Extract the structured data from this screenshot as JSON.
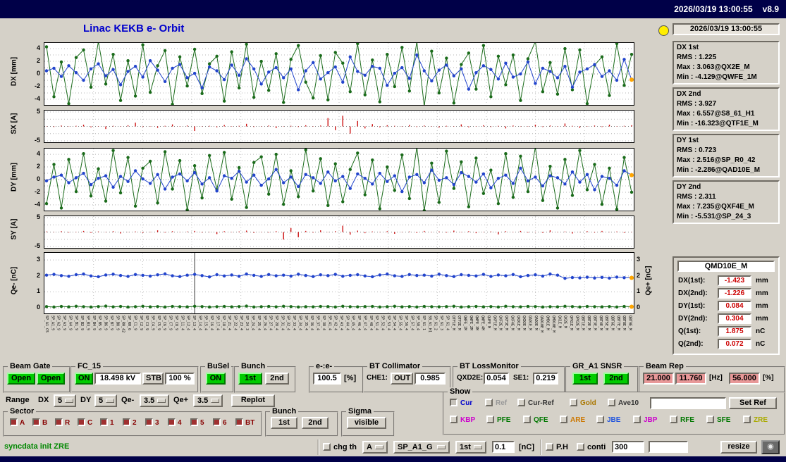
{
  "window": {
    "topbar_datetime": "2026/03/19 13:00:55",
    "topbar_version": "v8.9",
    "title": "Linac KEKB e- Orbit"
  },
  "icons": {
    "camera": "◉"
  },
  "colors": {
    "topbar_navy": "#000048",
    "accent_title": "#0000cc",
    "button_on_green": "#00cc00",
    "value_pink_bg": "#e89898",
    "value_red_text": "#cc0000",
    "status_green_text": "#008800",
    "sector_toggle": "#a03030",
    "gold": "#ffa500",
    "led_yellow": "#ffee00",
    "series_blue": "#2244cc",
    "series_green": "#1a6b1a",
    "series_red": "#cc1111"
  },
  "status_panel": {
    "timestamp": "2026/03/19 13:00:55",
    "stats": [
      {
        "title": "DX 1st",
        "rms": "RMS :  1.225",
        "max": "Max :  3.063@QX2E_M",
        "min": "Min : -4.129@QWFE_1M"
      },
      {
        "title": "DX 2nd",
        "rms": "RMS :  3.927",
        "max": "Max :  6.557@S8_61_H1",
        "min": "Min : -16.323@QTF1E_M"
      },
      {
        "title": "DY 1st",
        "rms": "RMS :  0.723",
        "max": "Max :  2.516@SP_R0_42",
        "min": "Min : -2.286@QAD10E_M"
      },
      {
        "title": "DY 2nd",
        "rms": "RMS :  2.311",
        "max": "Max :  7.235@QXF4E_M",
        "min": "Min : -5.531@SP_24_3"
      }
    ],
    "monitor": {
      "title": "QMD10E_M",
      "rows": [
        {
          "label": "DX(1st):",
          "value": "-1.423",
          "unit": "mm"
        },
        {
          "label": "DX(2nd):",
          "value": "-1.226",
          "unit": "mm"
        },
        {
          "label": "DY(1st):",
          "value": "0.084",
          "unit": "mm"
        },
        {
          "label": "DY(2nd):",
          "value": "0.304",
          "unit": "mm"
        },
        {
          "label": "Q(1st):",
          "value": "1.875",
          "unit": "nC"
        },
        {
          "label": "Q(2nd):",
          "value": "0.072",
          "unit": "nC"
        }
      ]
    }
  },
  "chart_data": [
    {
      "type": "line",
      "ylabel": "DX [mm]",
      "ylim": [
        -4.9,
        4.9
      ],
      "yticks": [
        4,
        2,
        0,
        -2,
        -4
      ],
      "grid_step": 1,
      "series": [
        {
          "name": "2nd bunch",
          "color": "#1a6b1a",
          "values": [
            4.3,
            -3.6,
            1.9,
            -4.7,
            2.6,
            3.8,
            -2.1,
            5.4,
            -1.6,
            3.1,
            -4.2,
            2.1,
            -3.5,
            4.6,
            -2.9,
            1.3,
            3.7,
            -4.8,
            2.7,
            -1.9,
            3.9,
            -3.1,
            1.6,
            2.8,
            -4.3,
            3.5,
            -2.2,
            4.7,
            -3.7,
            2.0,
            -2.6,
            3.2,
            -4.5,
            2.3,
            4.5,
            -1.3,
            -3.8,
            2.9,
            -4.1,
            3.4,
            1.7,
            -2.8,
            4.8,
            -3.3,
            2.2,
            -4.4,
            3.1,
            -2.0,
            4.2,
            -2.7,
            7.4,
            -5.1,
            3.6,
            -3.0,
            2.5,
            -4.6,
            1.5,
            3.3,
            -2.4,
            4.5,
            -3.6,
            2.8,
            -1.7,
            3.0,
            -4.2,
            2.4,
            6.1,
            -2.8,
            1.8,
            -3.2,
            4.0,
            -2.5,
            3.8,
            -4.7,
            1.4,
            2.7,
            -3.4,
            4.8,
            -1.8,
            3.1
          ]
        },
        {
          "name": "1st bunch",
          "color": "#2244cc",
          "gold_last": true,
          "values": [
            0.5,
            0.9,
            -0.4,
            1.3,
            0.2,
            -1.0,
            0.8,
            1.6,
            -0.3,
            0.7,
            -1.7,
            0.4,
            1.2,
            -0.5,
            2.1,
            0.6,
            -1.2,
            0.9,
            1.5,
            -0.6,
            0.1,
            -2.2,
            1.1,
            0.5,
            -0.9,
            1.4,
            -0.2,
            2.4,
            0.8,
            -1.6,
            0.3,
            1.0,
            -0.6,
            0.8,
            -2.5,
            0.5,
            1.8,
            -0.8,
            0.2,
            1.1,
            -1.3,
            2.7,
            0.4,
            -0.2,
            1.2,
            0.9,
            -1.8,
            0.1,
            1.0,
            -0.7,
            3.0,
            0.5,
            -1.1,
            0.6,
            1.4,
            -0.3,
            0.8,
            -2.4,
            0.2,
            1.3,
            0.7,
            -0.8,
            1.7,
            -0.5,
            0.0,
            1.9,
            -1.5,
            0.9,
            0.4,
            -0.6,
            1.2,
            -2.1,
            0.3,
            0.8,
            1.5,
            -0.4,
            0.5,
            -1.0,
            2.3,
            -0.9
          ]
        }
      ]
    },
    {
      "type": "bar",
      "ylabel": "SX [A]",
      "ylim": [
        -5.5,
        5.5
      ],
      "yticks": [
        5,
        -5
      ],
      "grid_step": 2.5,
      "color": "#cc1111",
      "values": [
        0.1,
        -0.2,
        0.3,
        -0.1,
        0.2,
        0.6,
        -0.3,
        0.1,
        -0.9,
        0.2,
        -0.1,
        0.4,
        1.3,
        -0.2,
        0.1,
        -0.5,
        0.2,
        0.7,
        -0.1,
        0.3,
        -1.6,
        0.1,
        0.2,
        -0.3,
        0.5,
        -0.1,
        0.2,
        0.9,
        -0.2,
        0.1,
        0.3,
        -0.6,
        0.1,
        0.2,
        -0.2,
        0.4,
        -0.1,
        0.3,
        2.9,
        -1.3,
        3.7,
        -2.5,
        1.9,
        -0.7,
        0.8,
        -0.3,
        0.4,
        0.2,
        -0.1,
        0.5,
        -0.2,
        0.3,
        0.1,
        -0.4,
        0.2,
        -0.1,
        0.7,
        -0.3,
        0.1,
        0.4,
        -0.2,
        0.2,
        -0.7,
        0.3,
        -0.1,
        0.1,
        0.6,
        -0.2,
        0.3,
        -0.1,
        1.0,
        0.2,
        -0.5,
        0.1,
        0.3,
        -0.2,
        0.6,
        -0.1,
        0.2,
        0.4
      ]
    },
    {
      "type": "line",
      "ylabel": "DY [mm]",
      "ylim": [
        -4.9,
        4.9
      ],
      "yticks": [
        4,
        2,
        0,
        -2,
        -4
      ],
      "grid_step": 1,
      "series": [
        {
          "name": "2nd bunch",
          "color": "#1a6b1a",
          "values": [
            -3.8,
            2.4,
            -4.5,
            3.2,
            -1.9,
            4.1,
            -2.6,
            1.7,
            -3.4,
            4.6,
            -2.1,
            3.5,
            -4.2,
            1.8,
            2.9,
            -3.7,
            4.4,
            -1.5,
            3.0,
            -4.8,
            2.2,
            -2.9,
            3.8,
            -1.6,
            4.3,
            -3.1,
            1.9,
            -4.4,
            2.7,
            3.6,
            -2.3,
            4.0,
            -3.9,
            1.4,
            -2.7,
            4.7,
            -1.8,
            3.3,
            -4.1,
            2.5,
            -3.5,
            1.6,
            4.2,
            -2.4,
            3.1,
            -4.6,
            2.0,
            -1.7,
            3.9,
            -3.0,
            6.8,
            -4.9,
            2.6,
            -3.6,
            4.5,
            -1.4,
            2.8,
            -4.3,
            3.4,
            -2.2,
            1.5,
            -3.8,
            4.1,
            -2.8,
            3.7,
            -1.9,
            5.6,
            -3.3,
            2.1,
            -4.5,
            3.2,
            -2.5,
            4.6,
            -1.6,
            2.4,
            -3.9,
            1.8,
            -4.7,
            3.5,
            -2.0
          ]
        },
        {
          "name": "1st bunch",
          "color": "#2244cc",
          "gold_last": true,
          "values": [
            -0.2,
            0.4,
            0.7,
            -0.5,
            0.3,
            1.0,
            -0.8,
            0.2,
            0.6,
            -1.2,
            0.5,
            -0.3,
            1.4,
            0.1,
            -0.6,
            0.8,
            -1.5,
            0.4,
            0.9,
            -0.2,
            1.1,
            -0.7,
            0.3,
            -1.8,
            0.6,
            0.2,
            1.3,
            -0.4,
            0.7,
            -0.9,
            0.1,
            1.6,
            -0.5,
            0.4,
            -1.1,
            0.8,
            0.3,
            -0.6,
            1.2,
            -0.2,
            0.5,
            -1.4,
            0.9,
            0.2,
            -0.7,
            1.0,
            -0.3,
            0.6,
            -1.9,
            0.4,
            0.8,
            -0.5,
            1.5,
            -0.1,
            0.3,
            -0.8,
            1.1,
            0.5,
            -0.4,
            0.9,
            -1.3,
            0.2,
            0.7,
            -0.6,
            1.8,
            -0.2,
            0.4,
            -1.0,
            0.6,
            0.3,
            -0.7,
            1.2,
            -0.4,
            0.8,
            -1.6,
            0.5,
            0.2,
            -0.9,
            1.4,
            0.7
          ]
        }
      ]
    },
    {
      "type": "bar",
      "ylabel": "SY [A]",
      "ylim": [
        -5.5,
        5.5
      ],
      "yticks": [
        5,
        -5
      ],
      "grid_step": 2.5,
      "color": "#cc1111",
      "values": [
        0.2,
        -0.1,
        0.3,
        -0.2,
        0.1,
        0.4,
        -0.3,
        0.2,
        -0.1,
        0.3,
        -0.5,
        0.1,
        0.2,
        -0.3,
        0.1,
        0.6,
        -0.2,
        0.3,
        -0.1,
        0.2,
        0.4,
        -0.2,
        0.1,
        -0.7,
        0.3,
        -0.1,
        0.2,
        0.5,
        -0.3,
        0.1,
        -0.2,
        0.3,
        -2.6,
        1.4,
        -1.8,
        0.4,
        -0.2,
        0.6,
        -0.1,
        0.3,
        2.2,
        -0.9,
        0.5,
        -0.4,
        0.2,
        -0.1,
        0.3,
        -0.6,
        0.1,
        0.2,
        -0.3,
        0.4,
        -0.1,
        0.2,
        -0.2,
        0.5,
        -0.1,
        0.3,
        -0.4,
        0.1,
        0.2,
        -0.8,
        0.3,
        -0.1,
        0.4,
        -0.2,
        0.1,
        -0.3,
        0.6,
        -0.1,
        0.2,
        -0.5,
        0.1,
        0.3,
        -0.2,
        0.4,
        -0.1,
        0.2,
        -0.3,
        0.1
      ]
    },
    {
      "type": "line",
      "ylabel": "Qe- [nC]",
      "ylabel_right": "Qe+ [nC]",
      "ylim": [
        -0.35,
        3.45
      ],
      "yticks": [
        3,
        2,
        1,
        0
      ],
      "yticks_right": [
        3,
        2,
        1,
        0
      ],
      "grid_step": 1,
      "marker_index": 20,
      "series": [
        {
          "name": "2nd bunch",
          "color": "#1a6b1a",
          "gold_last": true,
          "values": [
            0.08,
            0.05,
            0.09,
            0.06,
            0.1,
            0.07,
            0.05,
            0.08,
            0.11,
            0.06,
            0.09,
            0.05,
            0.07,
            0.1,
            0.06,
            0.08,
            0.05,
            0.09,
            0.07,
            0.06,
            0.1,
            0.08,
            0.05,
            0.07,
            0.09,
            0.06,
            0.08,
            0.11,
            0.05,
            0.07,
            0.09,
            0.06,
            0.1,
            0.08,
            0.05,
            0.07,
            0.06,
            0.09,
            0.08,
            0.05,
            0.1,
            0.07,
            0.06,
            0.08,
            0.09,
            0.05,
            0.07,
            0.1,
            0.06,
            0.08,
            0.05,
            0.09,
            0.07,
            0.06,
            0.08,
            0.1,
            0.05,
            0.07,
            0.09,
            0.06,
            0.08,
            0.05,
            0.1,
            0.07,
            0.06,
            0.09,
            0.08,
            0.05,
            0.07,
            0.06,
            0.1,
            0.08,
            0.05,
            0.09,
            0.07,
            0.06,
            0.08,
            0.05,
            0.09,
            0.07
          ]
        },
        {
          "name": "1st bunch",
          "color": "#2244cc",
          "gold_last": true,
          "values": [
            2.05,
            2.1,
            2.02,
            1.98,
            2.08,
            2.12,
            2.0,
            1.95,
            2.06,
            2.11,
            2.03,
            1.97,
            2.09,
            2.04,
            1.99,
            2.07,
            2.13,
            2.01,
            1.96,
            2.05,
            2.1,
            2.02,
            1.94,
            2.08,
            2.0,
            2.06,
            1.98,
            2.12,
            2.04,
            1.97,
            2.09,
            2.01,
            2.05,
            1.99,
            2.11,
            2.03,
            1.96,
            2.07,
            2.02,
            2.1,
            1.98,
            2.04,
            2.08,
            2.0,
            1.95,
            2.06,
            2.12,
            2.01,
            1.97,
            2.09,
            2.03,
            2.05,
            1.99,
            2.11,
            2.02,
            1.96,
            2.08,
            2.04,
            2.0,
            2.1,
            1.97,
            2.06,
            2.01,
            2.09,
            1.95,
            2.03,
            2.07,
            1.99,
            2.12,
            2.05,
            1.85,
            1.9,
            1.88,
            1.92,
            1.87,
            1.91,
            1.86,
            1.93,
            1.89,
            1.88
          ]
        }
      ],
      "xlabels": [
        "SP_A1_C5",
        "SP_A1_9",
        "SP_A2_9",
        "SP_A3_9",
        "SP_A4_9",
        "SP_B1_9",
        "SP_B2_9",
        "SP_B3_9",
        "SP_B4_9",
        "SP_B5_9",
        "SP_B6_9",
        "SP_B7_9",
        "SP_B8_9",
        "SP_R0_42",
        "SP_R0_6",
        "SP_C1_9",
        "SP_C2_9",
        "SP_C3_9",
        "SP_C4_9",
        "SP_C5_9",
        "SP_C6_9",
        "SP_C7_9",
        "SP_C8_9",
        "SP_11_4",
        "SP_12_4",
        "SP_13_4",
        "SP_14_4",
        "SP_15_4",
        "SP_16_4",
        "SP_17_4",
        "SP_18_4",
        "SP_21_4",
        "SP_22_4",
        "SP_23_4",
        "SP_24_3",
        "SP_24_4",
        "SP_25_4",
        "SP_26_4",
        "SP_27_4",
        "SP_28_4",
        "SP_31_4",
        "SP_32_4",
        "SP_33_4",
        "SP_34_4",
        "SP_35_4",
        "SP_36_4",
        "SP_37_4",
        "SP_38_4",
        "SP_41_4",
        "SP_42_4",
        "SP_43_4",
        "SP_44_4",
        "SP_45_4",
        "SP_46_4",
        "SP_47_4",
        "SP_48_4",
        "SP_51_4",
        "SP_52_4",
        "SP_53_4",
        "SP_54_4",
        "SP_55_4",
        "SP_56_4",
        "SP_57_4",
        "SP_58_4",
        "SP_61_1",
        "S8_61_H1",
        "SP_61_2",
        "SP_61_3",
        "SP_61_4",
        "QTF1E_M",
        "QTF2E_M",
        "QWFE_1M",
        "QWFE_2M",
        "QWFE_3M",
        "QWFE_4M",
        "QUFE_M",
        "QXF1E_M",
        "QXF2E_M",
        "QXF3E_M",
        "QXF4E_M",
        "QXD1E_M",
        "QXD2E_M",
        "QAD1E_M",
        "QAD2E_M",
        "QAD10E_M",
        "QMD1E_M",
        "QMD10E_M",
        "QX1E_M",
        "QX2E_M",
        "QPX1E_M",
        "QPX2E_M",
        "QBT1E_M",
        "QBT2E_M",
        "QBT3E_M",
        "QBT4E_M",
        "QBT5E_M",
        "QBT6E_M",
        "QBT7E_M",
        "QBT8E_M",
        "QBT9E_M"
      ]
    }
  ],
  "controls": {
    "beam_gate": {
      "title": "Beam Gate",
      "buttons": [
        "Open",
        "Open"
      ]
    },
    "fc15": {
      "title": "FC_15",
      "on": "ON",
      "kv": "18.498 kV",
      "stb": "STB",
      "pct": "100 %"
    },
    "busel": {
      "title": "BuSel",
      "on": "ON"
    },
    "bunch1": {
      "title": "Bunch",
      "b1": "1st",
      "b2": "2nd"
    },
    "ee": {
      "title": "e-:e-",
      "value": "100.5",
      "unit": "[%]"
    },
    "bt_collimator": {
      "title": "BT Collimator",
      "che1_label": "CHE1:",
      "che1_state": "OUT",
      "value": "0.985"
    },
    "bt_lossmonitor": {
      "title": "BT LossMonitor",
      "qxd2e_label": "QXD2E:",
      "qxd2e": "0.054",
      "se1_label": "SE1:",
      "se1": "0.219"
    },
    "gr_a1": {
      "title": "GR_A1 SNSR",
      "b1": "1st",
      "b2": "2nd"
    },
    "beam_rep": {
      "title": "Beam Rep",
      "v1": "21.000",
      "v2": "11.760",
      "hz": "[Hz]",
      "v3": "56.000",
      "pct": "[%]"
    },
    "range_row": {
      "range_label": "Range",
      "dx_label": "DX",
      "dx": "5",
      "dy_label": "DY",
      "dy": "5",
      "qem_label": "Qe-",
      "qem": "3.5",
      "qep_label": "Qe+",
      "qep": "3.5",
      "replot": "Replot"
    },
    "show": {
      "title": "Show",
      "row1": [
        {
          "label": "Cur",
          "color": "#0000cc"
        },
        {
          "label": "Ref",
          "color": "#999999"
        },
        {
          "label": "Cur-Ref",
          "color": "#333333"
        },
        {
          "label": "Gold",
          "color": "#aa7700"
        },
        {
          "label": "Ave10",
          "color": "#333333"
        }
      ],
      "ref_input": "",
      "set_ref": "Set Ref",
      "row2": [
        {
          "label": "KBP",
          "color": "#cc00cc"
        },
        {
          "label": "PFE",
          "color": "#007700"
        },
        {
          "label": "QFE",
          "color": "#007700"
        },
        {
          "label": "ARE",
          "color": "#cc7700"
        },
        {
          "label": "JBE",
          "color": "#2255dd"
        },
        {
          "label": "JBP",
          "color": "#cc00cc"
        },
        {
          "label": "RFE",
          "color": "#007700"
        },
        {
          "label": "SFE",
          "color": "#007700"
        },
        {
          "label": "ZRE",
          "color": "#aaaa00"
        }
      ]
    },
    "sector": {
      "title": "Sector",
      "items": [
        "A",
        "B",
        "R",
        "C",
        "1",
        "2",
        "3",
        "4",
        "5",
        "6",
        "BT"
      ]
    },
    "bunch2": {
      "title": "Bunch",
      "b1": "1st",
      "b2": "2nd"
    },
    "sigma": {
      "title": "Sigma",
      "visible": "visible"
    },
    "statusbar": {
      "message": "syncdata init ZRE",
      "chg_th": "chg th",
      "dd1": "A",
      "dd2": "SP_A1_G",
      "dd3": "1st",
      "threshold": "0.1",
      "unit": "[nC]",
      "ph": "P.H",
      "conti": "conti",
      "num": "300",
      "free_input": "",
      "resize": "resize"
    }
  }
}
